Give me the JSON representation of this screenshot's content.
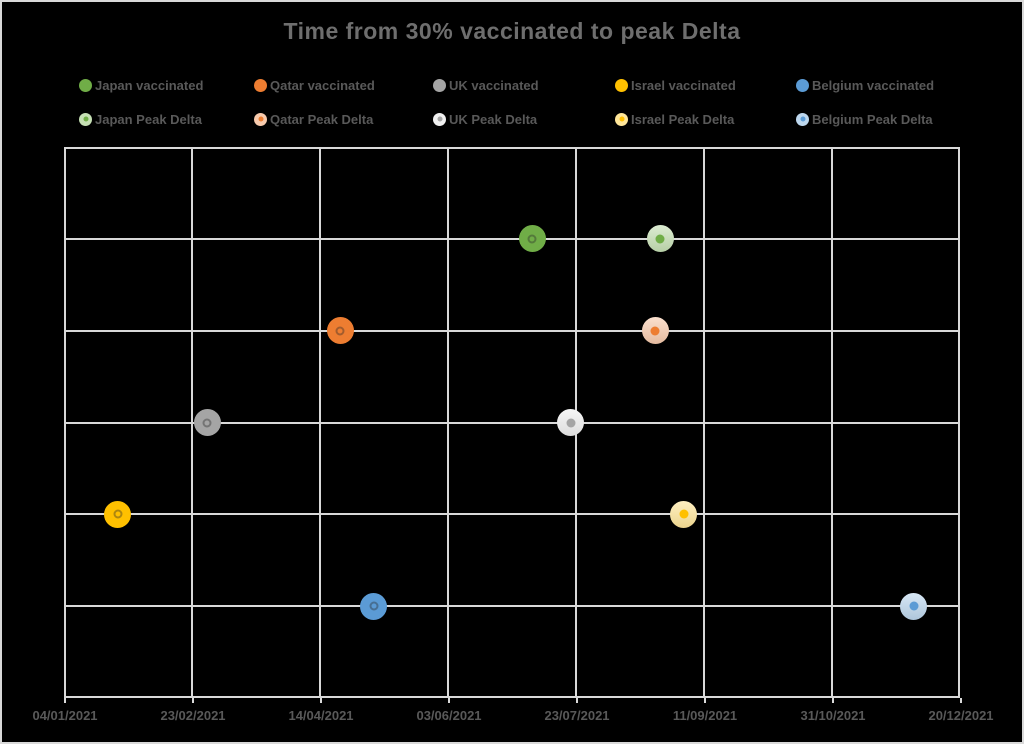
{
  "frame": {
    "background": "#000000",
    "border_color": "#D9D9D9"
  },
  "title": {
    "text": "Time from 30% vaccinated to peak Delta",
    "color": "#6E6E6E"
  },
  "colors": {
    "gridline": "#D9D9D9",
    "axis_text": "#595959",
    "legend_text": "#595959"
  },
  "legend": {
    "rows": [
      {
        "items": [
          {
            "label": "Japan vaccinated",
            "color": "#70AD47"
          },
          {
            "label": "Qatar vaccinated",
            "color": "#ED7D31"
          },
          {
            "label": "UK vaccinated",
            "color": "#A5A5A5"
          },
          {
            "label": "Israel vaccinated",
            "color": "#FFC000"
          },
          {
            "label": "Belgium vaccinated",
            "color": "#5B9BD5"
          }
        ]
      },
      {
        "items": [
          {
            "label": "Japan Peak Delta",
            "color": "#C6E0B4",
            "dot": "#70AD47"
          },
          {
            "label": "Qatar Peak Delta",
            "color": "#F8CBAD",
            "dot": "#ED7D31"
          },
          {
            "label": "UK Peak Delta",
            "color": "#F0F0F0",
            "dot": "#A5A5A5"
          },
          {
            "label": "Israel Peak Delta",
            "color": "#FFE699",
            "dot": "#FFC000"
          },
          {
            "label": "Belgium Peak Delta",
            "color": "#BDD7EE",
            "dot": "#5B9BD5"
          }
        ]
      }
    ]
  },
  "chart_data": {
    "type": "scatter",
    "title": "Time from 30% vaccinated to peak Delta",
    "x_axis": {
      "kind": "date",
      "format": "DD/MM/YYYY",
      "tick_labels": [
        "04/01/2021",
        "23/02/2021",
        "14/04/2021",
        "03/06/2021",
        "23/07/2021",
        "11/09/2021",
        "31/10/2021",
        "20/12/2021"
      ],
      "major_unit_days": 50,
      "grid": true
    },
    "y_axis": {
      "min": 0,
      "max": 6,
      "major_unit": 1,
      "labels_visible": false,
      "grid": true
    },
    "series": [
      {
        "country": "Japan",
        "row": 5,
        "color": "#70AD47",
        "light_color": "#C6E0B4",
        "vaccinated_30pct": "06/07/2021",
        "peak_delta": "25/08/2021"
      },
      {
        "country": "Qatar",
        "row": 4,
        "color": "#ED7D31",
        "light_color": "#F8CBAD",
        "vaccinated_30pct": "22/04/2021",
        "peak_delta": "23/08/2021"
      },
      {
        "country": "UK",
        "row": 3,
        "color": "#A5A5A5",
        "light_color": "#F0F0F0",
        "vaccinated_30pct": "01/03/2021",
        "peak_delta": "21/07/2021"
      },
      {
        "country": "Israel",
        "row": 2,
        "color": "#FFC000",
        "light_color": "#FFE699",
        "vaccinated_30pct": "25/01/2021",
        "peak_delta": "03/09/2021"
      },
      {
        "country": "Belgium",
        "row": 1,
        "color": "#5B9BD5",
        "light_color": "#BDD7EE",
        "vaccinated_30pct": "05/05/2021",
        "peak_delta": "02/12/2021"
      }
    ],
    "legend_position": "top",
    "plot_background": "#000000"
  }
}
